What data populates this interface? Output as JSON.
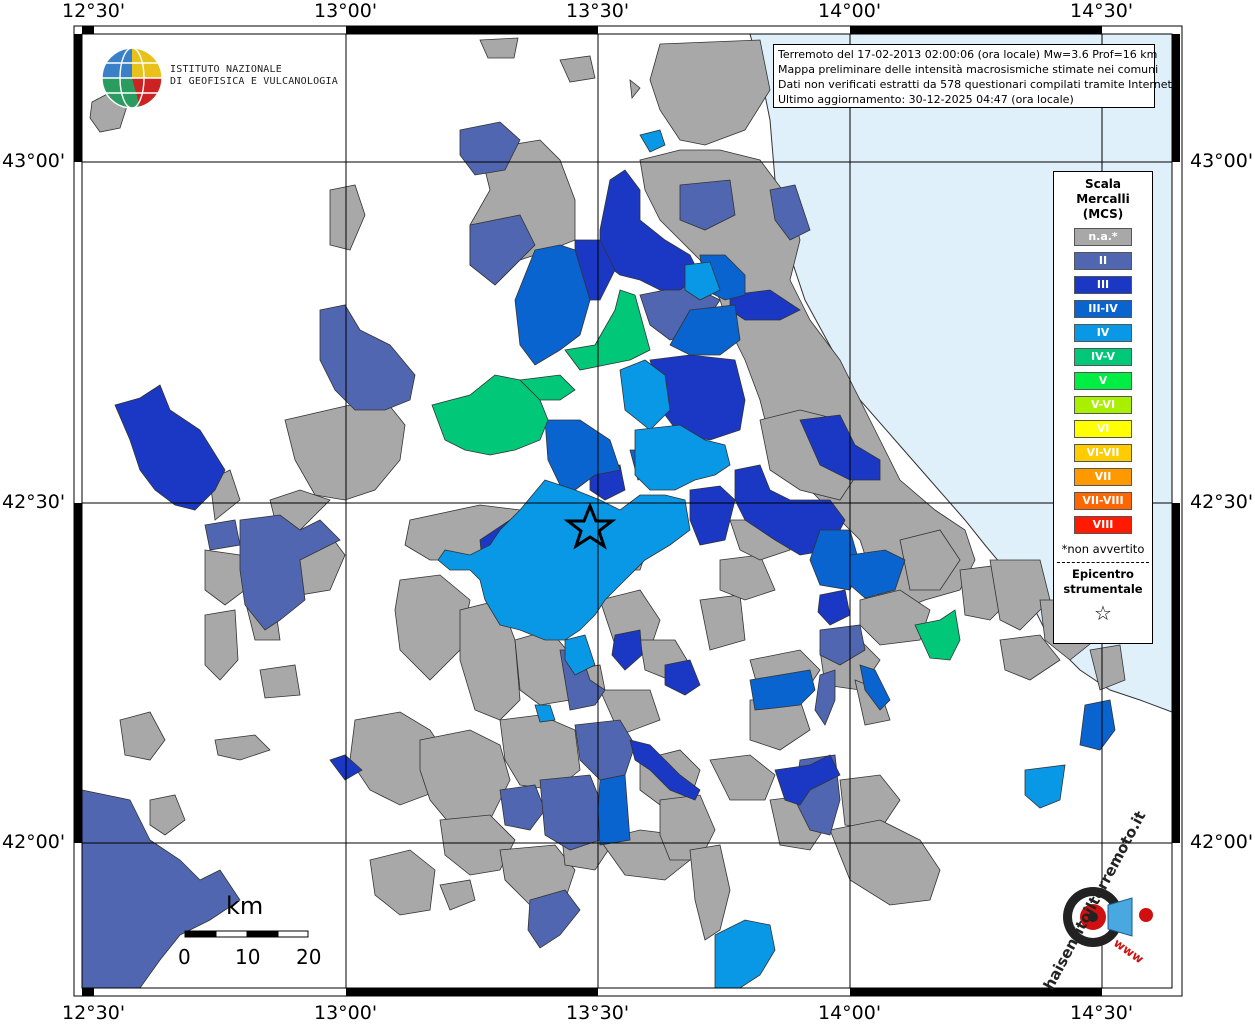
{
  "map": {
    "top_ticks": [
      "12°30'",
      "13°00'",
      "13°30'",
      "14°00'",
      "14°30'"
    ],
    "bottom_ticks": [
      "12°30'",
      "13°00'",
      "13°30'",
      "14°00'",
      "14°30'"
    ],
    "left_ticks": [
      "43°00'",
      "42°30'",
      "42°00'"
    ],
    "right_ticks": [
      "43°00'",
      "42°30'",
      "42°00'"
    ],
    "sea_color": "#dff0fb",
    "na_color": "#a8a8a8",
    "epicenter_icon": "star-icon"
  },
  "institute": {
    "line1": "ISTITUTO NAZIONALE",
    "line2": "DI GEOFISICA E VULCANOLOGIA"
  },
  "info": {
    "line1": "Terremoto del 17-02-2013 02:00:06 (ora locale) Mw=3.6 Prof=16 km",
    "line2": "Mappa preliminare delle intensità macrosismiche stimate nei comuni",
    "line3": "Dati non verificati estratti da 578 questionari compilati tramite Internet.",
    "line4": "Ultimo aggiornamento: 30-12-2025 04:47 (ora locale)"
  },
  "legend": {
    "title1": "Scala",
    "title2": "Mercalli",
    "title3": "(MCS)",
    "items": [
      {
        "label": "n.a.*",
        "color": "#a8a8a8"
      },
      {
        "label": "II",
        "color": "#5066b0"
      },
      {
        "label": "III",
        "color": "#1a38c4"
      },
      {
        "label": "III-IV",
        "color": "#0a64d0"
      },
      {
        "label": "IV",
        "color": "#0898e6"
      },
      {
        "label": "IV-V",
        "color": "#00c878"
      },
      {
        "label": "V",
        "color": "#00ee44"
      },
      {
        "label": "V-VI",
        "color": "#a8f000"
      },
      {
        "label": "VI",
        "color": "#ffff00"
      },
      {
        "label": "VI-VII",
        "color": "#ffcc00"
      },
      {
        "label": "VII",
        "color": "#ff9900"
      },
      {
        "label": "VII-VIII",
        "color": "#ff6600"
      },
      {
        "label": "VIII",
        "color": "#ff1a00"
      }
    ],
    "note": "*non avvertito",
    "epi1": "Epicentro",
    "epi2": "strumentale"
  },
  "scalebar": {
    "title": "km",
    "labels": [
      "0",
      "10",
      "20"
    ]
  },
  "brand": {
    "text": "haisentitoilterremoto.it",
    "www": "www"
  }
}
